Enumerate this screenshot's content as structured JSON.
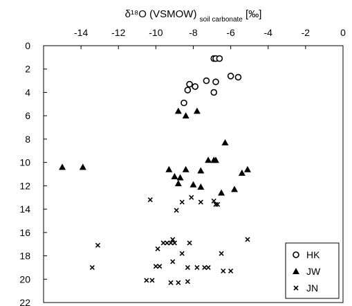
{
  "chart_data": {
    "type": "scatter",
    "title": "",
    "xlabel": {
      "main": "δ¹⁸O (VSMOW)",
      "subscript": "soil carbonate",
      "unit": "[‰]"
    },
    "ylabel": "",
    "x_axis_position": "top",
    "y_axis_inverted": true,
    "xlim": [
      -16,
      0
    ],
    "ylim": [
      0,
      22
    ],
    "x_ticks": [
      -14,
      -12,
      -10,
      -8,
      -6,
      -4,
      -2,
      0
    ],
    "y_ticks": [
      0,
      2,
      4,
      6,
      8,
      10,
      12,
      14,
      16,
      18,
      20,
      22
    ],
    "grid": false,
    "legend_position": "bottom-right",
    "series": [
      {
        "name": "HK",
        "marker": "open-circle",
        "points": [
          [
            -6.9,
            1.1
          ],
          [
            -6.8,
            1.1
          ],
          [
            -6.6,
            1.1
          ],
          [
            -6.0,
            2.6
          ],
          [
            -5.6,
            2.7
          ],
          [
            -7.3,
            3.0
          ],
          [
            -6.8,
            3.1
          ],
          [
            -8.2,
            3.3
          ],
          [
            -7.9,
            3.5
          ],
          [
            -8.3,
            3.8
          ],
          [
            -6.9,
            4.0
          ],
          [
            -8.5,
            4.9
          ]
        ]
      },
      {
        "name": "JW",
        "marker": "filled-triangle",
        "points": [
          [
            -8.8,
            5.6
          ],
          [
            -7.8,
            5.6
          ],
          [
            -8.4,
            6.0
          ],
          [
            -6.3,
            8.3
          ],
          [
            -15.0,
            10.4
          ],
          [
            -13.9,
            10.4
          ],
          [
            -7.2,
            9.8
          ],
          [
            -6.9,
            9.8
          ],
          [
            -6.8,
            9.8
          ],
          [
            -9.3,
            10.6
          ],
          [
            -8.4,
            10.6
          ],
          [
            -7.6,
            10.7
          ],
          [
            -5.1,
            10.6
          ],
          [
            -5.4,
            10.9
          ],
          [
            -9.0,
            11.2
          ],
          [
            -8.7,
            11.3
          ],
          [
            -8.8,
            11.8
          ],
          [
            -8.0,
            11.9
          ],
          [
            -7.6,
            12.1
          ],
          [
            -5.8,
            12.3
          ],
          [
            -6.5,
            12.6
          ]
        ]
      },
      {
        "name": "JN",
        "marker": "cross",
        "points": [
          [
            -10.3,
            13.2
          ],
          [
            -8.1,
            13.0
          ],
          [
            -8.6,
            13.4
          ],
          [
            -7.6,
            13.4
          ],
          [
            -6.9,
            13.3
          ],
          [
            -6.8,
            13.6
          ],
          [
            -6.7,
            13.6
          ],
          [
            -8.9,
            14.1
          ],
          [
            -9.1,
            16.6
          ],
          [
            -5.1,
            16.6
          ],
          [
            -9.6,
            16.9
          ],
          [
            -9.4,
            16.9
          ],
          [
            -9.2,
            16.9
          ],
          [
            -9.0,
            16.9
          ],
          [
            -8.2,
            16.9
          ],
          [
            -13.1,
            17.1
          ],
          [
            -9.9,
            17.4
          ],
          [
            -8.6,
            17.8
          ],
          [
            -6.5,
            17.8
          ],
          [
            -9.1,
            18.5
          ],
          [
            -10.0,
            18.9
          ],
          [
            -9.8,
            18.9
          ],
          [
            -13.4,
            19.0
          ],
          [
            -8.3,
            19.0
          ],
          [
            -7.8,
            19.0
          ],
          [
            -7.4,
            19.0
          ],
          [
            -7.2,
            19.0
          ],
          [
            -6.4,
            19.3
          ],
          [
            -6.0,
            19.3
          ],
          [
            -10.5,
            20.1
          ],
          [
            -10.2,
            20.1
          ],
          [
            -9.2,
            20.3
          ],
          [
            -8.8,
            20.3
          ],
          [
            -8.3,
            20.2
          ]
        ]
      }
    ]
  }
}
